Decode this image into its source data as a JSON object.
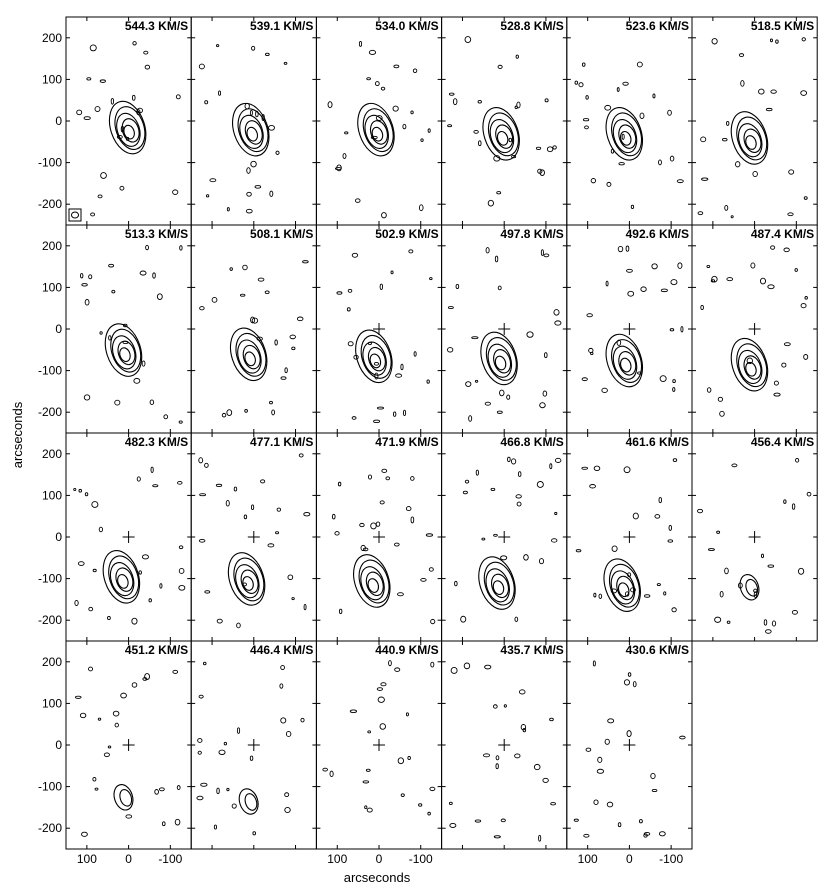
{
  "figure": {
    "x_axis_title": "arcseconds",
    "y_axis_title": "arcseconds",
    "y_tick_labels": [
      "200",
      "100",
      "0",
      "-100",
      "-200"
    ],
    "x_tick_labels": [
      "100",
      "0",
      "-100"
    ],
    "channels": [
      {
        "label": "544.3 KM/S",
        "centroid": [
          0,
          -15
        ]
      },
      {
        "label": "539.1 KM/S",
        "centroid": [
          5,
          -20
        ]
      },
      {
        "label": "534.0 KM/S",
        "centroid": [
          5,
          -20
        ]
      },
      {
        "label": "528.8 KM/S",
        "centroid": [
          5,
          -30
        ]
      },
      {
        "label": "523.6 KM/S",
        "centroid": [
          10,
          -30
        ]
      },
      {
        "label": "518.5 KM/S",
        "centroid": [
          10,
          -40
        ]
      },
      {
        "label": "513.3 KM/S",
        "centroid": [
          10,
          -50
        ]
      },
      {
        "label": "508.1 KM/S",
        "centroid": [
          10,
          -60
        ]
      },
      {
        "label": "502.9 KM/S",
        "centroid": [
          10,
          -65
        ]
      },
      {
        "label": "497.8 KM/S",
        "centroid": [
          10,
          -70
        ]
      },
      {
        "label": "492.6 KM/S",
        "centroid": [
          10,
          -75
        ]
      },
      {
        "label": "487.4 KM/S",
        "centroid": [
          10,
          -85
        ]
      },
      {
        "label": "482.3 KM/S",
        "centroid": [
          15,
          -95
        ]
      },
      {
        "label": "477.1 KM/S",
        "centroid": [
          15,
          -100
        ]
      },
      {
        "label": "471.9 KM/S",
        "centroid": [
          15,
          -105
        ]
      },
      {
        "label": "466.8 KM/S",
        "centroid": [
          15,
          -110
        ]
      },
      {
        "label": "461.6 KM/S",
        "centroid": [
          15,
          -115
        ]
      },
      {
        "label": "456.4 KM/S",
        "centroid": [
          10,
          -120
        ]
      },
      {
        "label": "451.2 KM/S",
        "centroid": [
          10,
          -125
        ]
      },
      {
        "label": "446.4 KM/S",
        "centroid": [
          10,
          -135
        ]
      },
      {
        "label": "440.9 KM/S",
        "centroid": null
      },
      {
        "label": "435.7 KM/S",
        "centroid": null
      },
      {
        "label": "430.6 KM/S",
        "centroid": null
      }
    ]
  }
}
